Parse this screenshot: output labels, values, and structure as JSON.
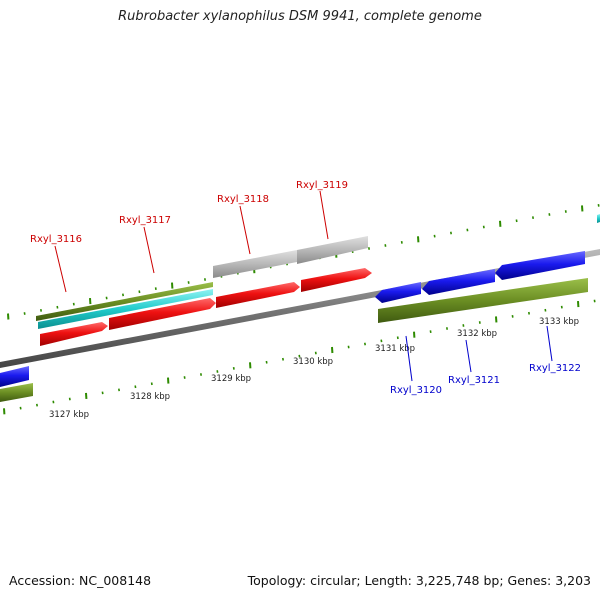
{
  "title": "Rubrobacter xylanophilus DSM 9941, complete genome",
  "footer": {
    "accession": "Accession: NC_008148",
    "stats": "Topology: circular; Length: 3,225,748 bp; Genes: 3,203"
  },
  "colors": {
    "forward_label": "#cc0000",
    "reverse_label": "#0000cc",
    "forward_cds": "#ee1111",
    "reverse_cds": "#1a1aee",
    "gene_band": "#6b8e23",
    "rna_band": "#22cccc",
    "pseudo_band": "#b8b8b8",
    "backbone": "#777777",
    "tick": "#2e8b00"
  },
  "scale_labels": [
    "3127 kbp",
    "3128 kbp",
    "3129 kbp",
    "3130 kbp",
    "3131 kbp",
    "3132 kbp",
    "3133 kbp"
  ],
  "genes_forward": [
    "Rxyl_3116",
    "Rxyl_3117",
    "Rxyl_3118",
    "Rxyl_3119"
  ],
  "genes_reverse": [
    "Rxyl_3120",
    "Rxyl_3121",
    "Rxyl_3122"
  ]
}
